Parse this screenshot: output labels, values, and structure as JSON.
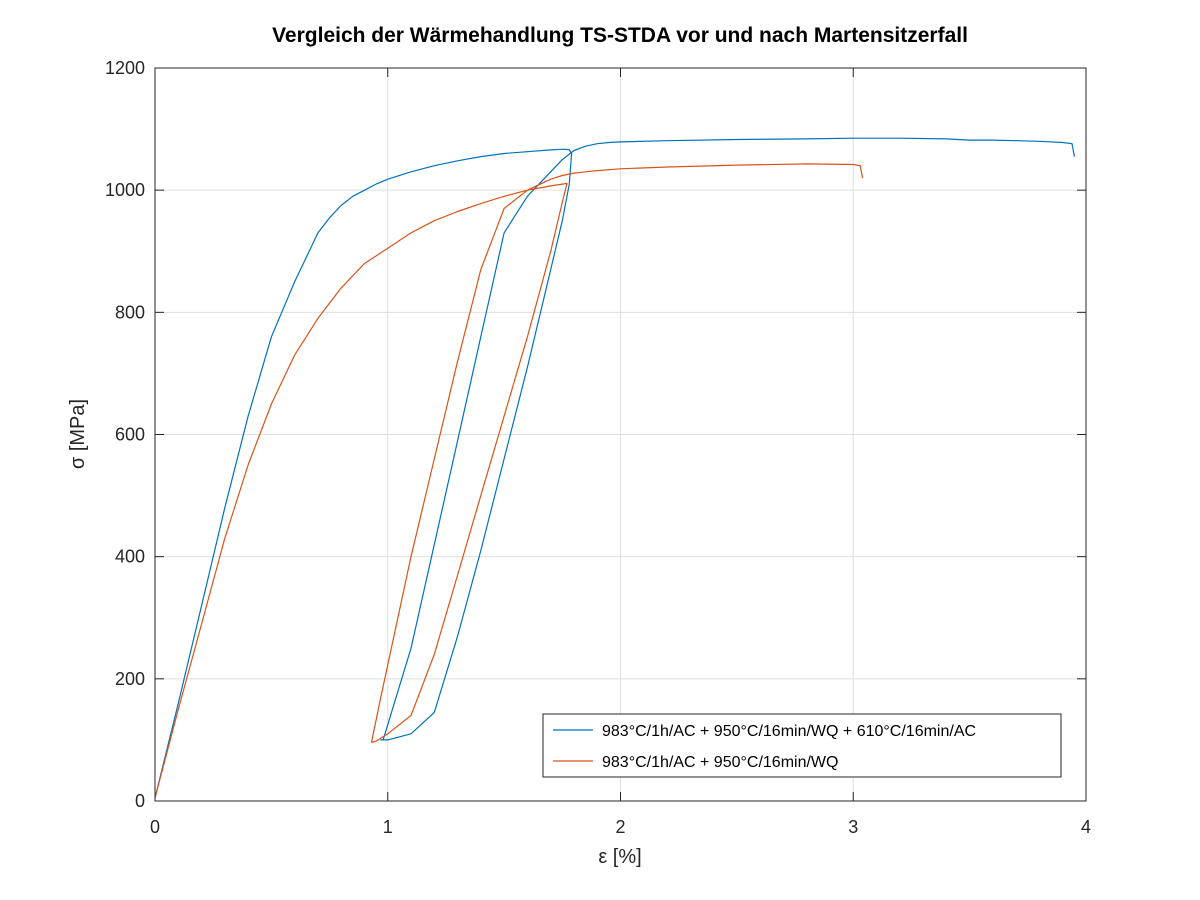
{
  "chart_data": {
    "type": "line",
    "title": "Vergleich der Wärmehandlung TS-STDA vor und nach Martensitzerfall",
    "xlabel": "ε [%]",
    "ylabel": "σ [MPa]",
    "xlim": [
      0,
      4
    ],
    "ylim": [
      0,
      1200
    ],
    "xticks": [
      0,
      1,
      2,
      3,
      4
    ],
    "xtick_labels": [
      "0",
      "1",
      "2",
      "3",
      "4"
    ],
    "yticks": [
      0,
      200,
      400,
      600,
      800,
      1000,
      1200
    ],
    "ytick_labels": [
      "0",
      "200",
      "400",
      "600",
      "800",
      "1000",
      "1200"
    ],
    "grid": true,
    "legend_position": "bottom-right",
    "series": [
      {
        "name": "983°C/1h/AC + 950°C/16min/WQ + 610°C/16min/AC",
        "color": "#0072BD",
        "x": [
          0,
          0.1,
          0.2,
          0.3,
          0.4,
          0.5,
          0.6,
          0.65,
          0.7,
          0.75,
          0.8,
          0.85,
          0.9,
          0.95,
          1.0,
          1.1,
          1.2,
          1.3,
          1.4,
          1.5,
          1.6,
          1.7,
          1.76,
          1.78,
          1.79,
          1.78,
          1.75,
          1.7,
          1.6,
          1.5,
          1.4,
          1.3,
          1.2,
          1.1,
          1.0,
          0.97,
          0.98,
          1.1,
          1.2,
          1.3,
          1.4,
          1.5,
          1.6,
          1.7,
          1.75,
          1.8,
          1.85,
          1.9,
          1.95,
          2.0,
          2.2,
          2.5,
          2.8,
          3.0,
          3.2,
          3.4,
          3.5,
          3.6,
          3.7,
          3.8,
          3.9,
          3.94,
          3.95
        ],
        "y": [
          5,
          160,
          320,
          480,
          630,
          760,
          850,
          890,
          930,
          955,
          975,
          990,
          1000,
          1010,
          1018,
          1030,
          1040,
          1048,
          1055,
          1060,
          1063,
          1066,
          1067,
          1066,
          1060,
          1010,
          950,
          870,
          710,
          560,
          410,
          270,
          145,
          110,
          100,
          100,
          100,
          250,
          420,
          590,
          760,
          930,
          990,
          1030,
          1050,
          1065,
          1072,
          1076,
          1078,
          1079,
          1081,
          1083,
          1084,
          1085,
          1085,
          1084,
          1082,
          1082,
          1081,
          1080,
          1078,
          1076,
          1055
        ]
      },
      {
        "name": "983°C/1h/AC + 950°C/16min/WQ",
        "color": "#D95319",
        "x": [
          0,
          0.1,
          0.2,
          0.3,
          0.4,
          0.5,
          0.6,
          0.7,
          0.8,
          0.9,
          1.0,
          1.1,
          1.2,
          1.3,
          1.4,
          1.5,
          1.6,
          1.7,
          1.75,
          1.77,
          1.75,
          1.7,
          1.6,
          1.5,
          1.4,
          1.3,
          1.2,
          1.1,
          1.0,
          0.95,
          0.93,
          0.97,
          1.1,
          1.2,
          1.3,
          1.4,
          1.5,
          1.6,
          1.7,
          1.75,
          1.8,
          1.85,
          1.9,
          2.0,
          2.2,
          2.5,
          2.8,
          3.0,
          3.03,
          3.04
        ],
        "y": [
          5,
          150,
          290,
          430,
          550,
          650,
          730,
          790,
          840,
          880,
          905,
          930,
          950,
          965,
          978,
          990,
          1000,
          1007,
          1010,
          1011,
          980,
          900,
          760,
          630,
          500,
          370,
          240,
          140,
          110,
          98,
          96,
          170,
          400,
          560,
          720,
          870,
          970,
          1000,
          1018,
          1024,
          1028,
          1030,
          1032,
          1035,
          1038,
          1041,
          1043,
          1042,
          1040,
          1020
        ]
      }
    ]
  }
}
